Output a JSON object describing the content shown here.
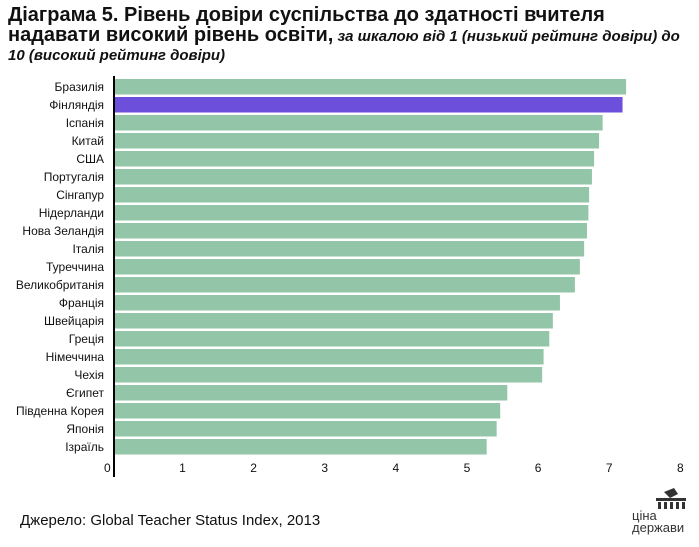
{
  "title": {
    "main": "Діаграма 5. Рівень довіри суспільства до здатності вчителя надавати високий рівень освіти,",
    "sub": " за шкалою від 1 (низький рейтинг довіри) до 10 (високий рейтинг довіри)"
  },
  "source": "Джерело: Global Teacher Status Index, 2013",
  "logo": {
    "line1": "ціна",
    "line2": "держави"
  },
  "colors": {
    "bar": "#93c6a8",
    "highlight": "#6c4fdb",
    "axis": "#000000"
  },
  "chart_data": {
    "type": "bar",
    "orientation": "horizontal",
    "categories": [
      "Бразилія",
      "Фінляндія",
      "Іспанія",
      "Китай",
      "США",
      "Португалія",
      "Сінгапур",
      "Нідерланди",
      "Нова Зеландія",
      "Італія",
      "Туреччина",
      "Великобританія",
      "Франція",
      "Швейцарія",
      "Греція",
      "Німеччина",
      "Чехія",
      "Єгипет",
      "Південна Корея",
      "Японія",
      "Ізраїль"
    ],
    "values": [
      7.2,
      7.15,
      6.87,
      6.82,
      6.75,
      6.72,
      6.68,
      6.67,
      6.65,
      6.61,
      6.55,
      6.48,
      6.27,
      6.17,
      6.12,
      6.04,
      6.02,
      5.53,
      5.43,
      5.38,
      5.24
    ],
    "highlight": "Фінляндія",
    "xlim": [
      0,
      8
    ],
    "xticks": [
      0,
      1,
      2,
      3,
      4,
      5,
      6,
      7,
      8
    ],
    "grid": false
  }
}
